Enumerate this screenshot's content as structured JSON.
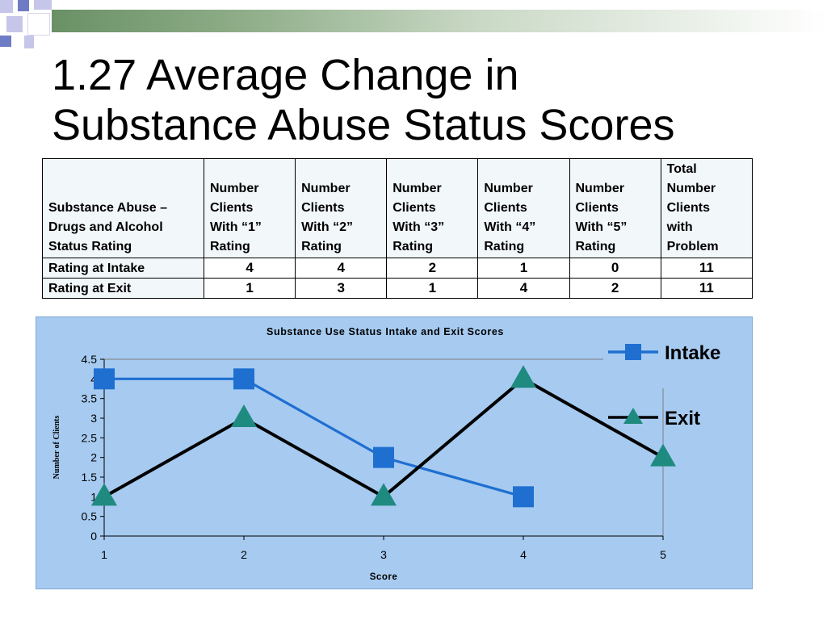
{
  "slide": {
    "title_line1": "1.27 Average Change in",
    "title_line2": "Substance Abuse Status Scores"
  },
  "table": {
    "headers": [
      "Substance Abuse –\nDrugs and Alcohol\nStatus Rating",
      "Number\nClients\n With “1”\nRating",
      "Number\nClients\nWith  “2”\nRating",
      "Number\nClients\nWith “3”\nRating",
      "Number\nClients\nWith “4”\nRating",
      "Number\nClients\nWith “5”\nRating",
      "Total\nNumber\nClients\nwith\nProblem"
    ],
    "rows": [
      {
        "label": "Rating at Intake",
        "values": [
          "4",
          "4",
          "2",
          "1",
          "0",
          "11"
        ]
      },
      {
        "label": "Rating at Exit",
        "values": [
          "1",
          "3",
          "1",
          "4",
          "2",
          "11"
        ]
      }
    ]
  },
  "chart_data": {
    "type": "line",
    "title": "Substance Use Status Intake and Exit Scores",
    "xlabel": "Score",
    "ylabel": "Number of Clients",
    "x": [
      1,
      2,
      3,
      4,
      5
    ],
    "ylim": [
      0,
      4.5
    ],
    "yticks": [
      "0",
      "0.5",
      "1",
      "1.5",
      "2",
      "2.5",
      "3",
      "3.5",
      "4",
      "4.5"
    ],
    "xticks": [
      "1",
      "2",
      "3",
      "4",
      "5"
    ],
    "grid": false,
    "legend": "right",
    "series": [
      {
        "name": "Intake",
        "x": [
          1,
          2,
          3,
          4
        ],
        "values": [
          4,
          4,
          2,
          1
        ],
        "color": "#1f6fd1",
        "marker": "square"
      },
      {
        "name": "Exit",
        "x": [
          1,
          2,
          3,
          4,
          5
        ],
        "values": [
          1,
          3,
          1,
          4,
          2
        ],
        "color": "#000000",
        "marker_color": "#1f8a80",
        "marker": "triangle"
      }
    ],
    "plot_background": "#a6caf0"
  }
}
